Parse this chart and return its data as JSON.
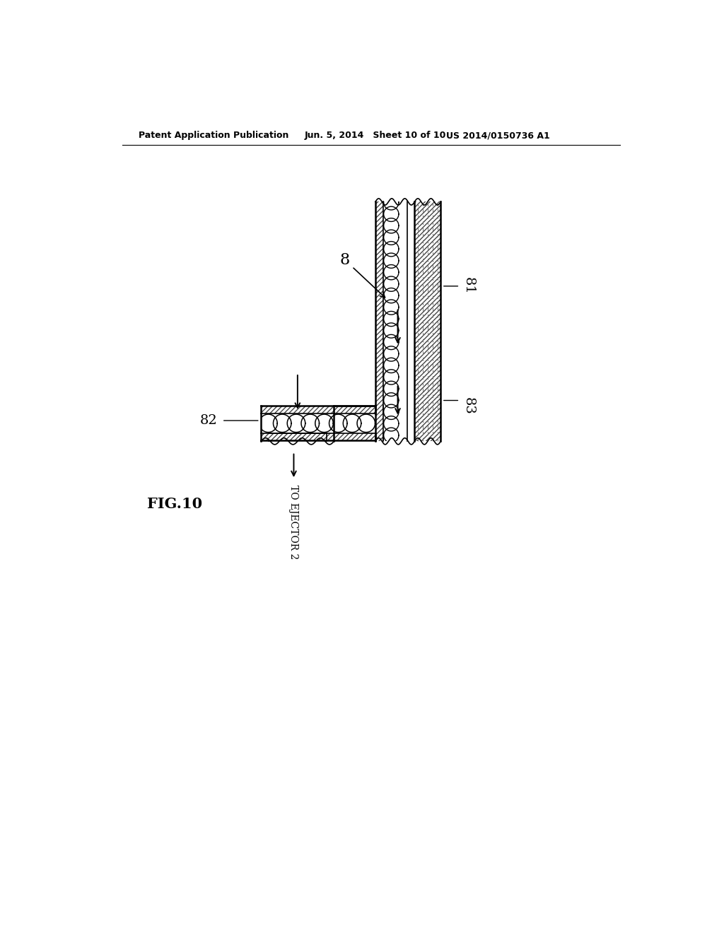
{
  "title_left": "Patent Application Publication",
  "title_center": "Jun. 5, 2014   Sheet 10 of 10",
  "title_right": "US 2014/0150736 A1",
  "fig_label": "FIG.10",
  "label_8": "8",
  "label_81": "81",
  "label_82": "82",
  "label_83": "83",
  "label_ejector": "TO EJECTOR 2",
  "bg_color": "#ffffff",
  "line_color": "#000000"
}
